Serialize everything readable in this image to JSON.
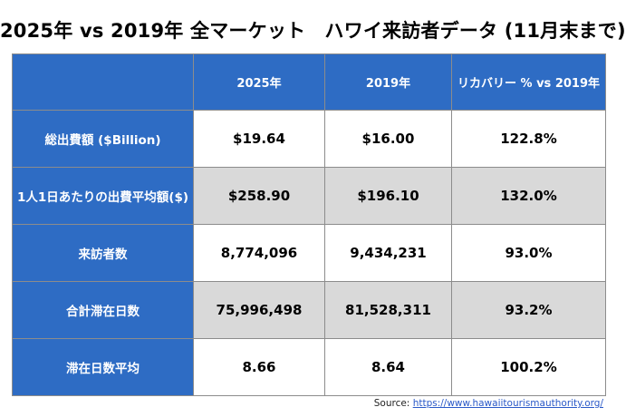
{
  "title": "2025年 vs 2019年 全マーケット　ハワイ来訪者データ (11月末まで)",
  "table": {
    "headers": [
      "",
      "2025年",
      "2019年",
      "リカバリー % vs 2019年"
    ],
    "rows": [
      {
        "label": "総出費額 ($Billion)",
        "v2025": "$19.64",
        "v2019": "$16.00",
        "recovery": "122.8%"
      },
      {
        "label": "1人1日あたりの出費平均額($)",
        "v2025": "$258.90",
        "v2019": "$196.10",
        "recovery": "132.0%"
      },
      {
        "label": "来訪者数",
        "v2025": "8,774,096",
        "v2019": "9,434,231",
        "recovery": "93.0%"
      },
      {
        "label": "合計滞在日数",
        "v2025": "75,996,498",
        "v2019": "81,528,311",
        "recovery": "93.2%"
      },
      {
        "label": "滞在日数平均",
        "v2025": "8.66",
        "v2019": "8.64",
        "recovery": "100.2%"
      }
    ]
  },
  "source": {
    "prefix": "Source: ",
    "link_text": "https://www.hawaiitourismauthority.org/"
  },
  "colors": {
    "header_blue": "#2e6cc4",
    "row_gray": "#d9d9d9",
    "link_blue": "#2a59c8"
  }
}
